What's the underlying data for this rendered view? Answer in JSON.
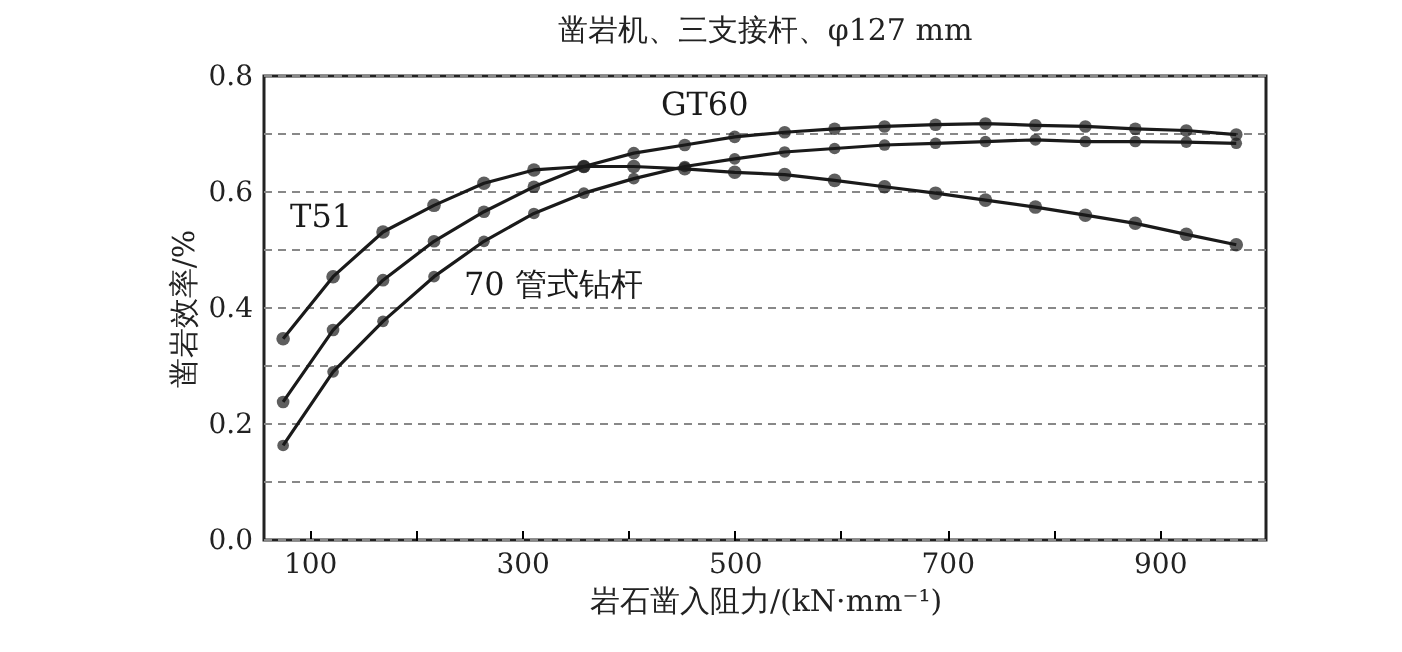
{
  "chart_data": {
    "type": "line",
    "title": "凿岩机、三支接杆、φ127 mm",
    "xlabel": "岩石凿入阻力/(kN·mm⁻¹)",
    "ylabel": "凿岩效率/%",
    "x": [
      75,
      122,
      169,
      217,
      264,
      311,
      358,
      405,
      453,
      500,
      547,
      594,
      641,
      689,
      736,
      783,
      830,
      877,
      925,
      972
    ],
    "series": [
      {
        "name": "T51",
        "color": "#1a1a1a",
        "values": [
          0.347,
          0.454,
          0.531,
          0.577,
          0.615,
          0.638,
          0.644,
          0.644,
          0.64,
          0.634,
          0.63,
          0.62,
          0.609,
          0.598,
          0.586,
          0.574,
          0.56,
          0.546,
          0.527,
          0.509
        ]
      },
      {
        "name": "GT60",
        "color": "#1a1a1a",
        "values": [
          0.238,
          0.362,
          0.448,
          0.515,
          0.566,
          0.609,
          0.644,
          0.667,
          0.681,
          0.695,
          0.703,
          0.709,
          0.713,
          0.716,
          0.718,
          0.715,
          0.713,
          0.709,
          0.706,
          0.699
        ]
      },
      {
        "name": "70 管式钻杆",
        "color": "#1a1a1a",
        "values": [
          0.163,
          0.29,
          0.377,
          0.454,
          0.515,
          0.563,
          0.598,
          0.623,
          0.644,
          0.657,
          0.669,
          0.675,
          0.681,
          0.684,
          0.687,
          0.69,
          0.687,
          0.687,
          0.686,
          0.684
        ]
      }
    ],
    "xlim": [
      57,
      1000
    ],
    "xticks": [
      100,
      {
        "value": 200,
        "label": null
      },
      300,
      {
        "value": 400,
        "label": null
      },
      500,
      {
        "value": 600,
        "label": null
      },
      700,
      {
        "value": 800,
        "label": null
      },
      900
    ],
    "ylim": [
      0,
      0.8
    ],
    "yticks": [
      {
        "value": 0,
        "label": "0.0"
      },
      {
        "value": 0.1,
        "label": null
      },
      {
        "value": 0.2,
        "label": "0.2"
      },
      {
        "value": 0.3,
        "label": null
      },
      {
        "value": 0.4,
        "label": "0.4"
      },
      {
        "value": 0.5,
        "label": null
      },
      {
        "value": 0.6,
        "label": "0.6"
      },
      {
        "value": 0.7,
        "label": null
      },
      {
        "value": 0.8,
        "label": "0.8"
      }
    ],
    "grid": "y",
    "marker": "circle",
    "line_style": "solid",
    "legend": false
  }
}
